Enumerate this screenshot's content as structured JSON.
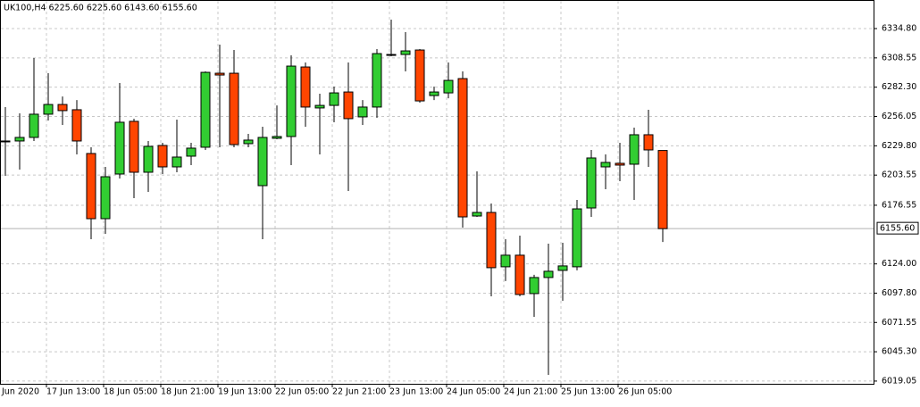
{
  "chart_data": {
    "type": "candlestick",
    "title": "UK100,H4  6225.60 6225.60 6143.60 6155.60",
    "x_start_label": "Jun 2020",
    "categories": [
      null,
      null,
      null,
      "17 Jun 13:00",
      null,
      null,
      null,
      "18 Jun 05:00",
      null,
      null,
      null,
      "18 Jun 21:00",
      null,
      null,
      null,
      "19 Jun 13:00",
      null,
      null,
      null,
      "22 Jun 05:00",
      null,
      null,
      null,
      "22 Jun 21:00",
      null,
      null,
      null,
      "23 Jun 13:00",
      null,
      null,
      null,
      "24 Jun 05:00",
      null,
      null,
      null,
      "24 Jun 21:00",
      null,
      null,
      null,
      "25 Jun 13:00",
      null,
      null,
      null,
      "26 Jun 05:00",
      null,
      null,
      null
    ],
    "open": [
      6233.3,
      6234.1,
      6237.3,
      6258.1,
      6266.8,
      6262.1,
      6222.9,
      6164.5,
      6204.5,
      6251.7,
      6206.1,
      6230.1,
      6210.9,
      6220.5,
      6228.5,
      6294.8,
      6294.8,
      6231.7,
      6194.1,
      6236.5,
      6238.1,
      6300.4,
      6263.7,
      6266.0,
      6278.0,
      6255.7,
      6264.5,
      6311.6,
      6311.6,
      6315.6,
      6274.8,
      6277.2,
      6290.0,
      6166.9,
      6170.1,
      6121.4,
      6131.8,
      6097.4,
      6111.8,
      6118.2,
      6121.4,
      6174.1,
      6210.9,
      6214.1,
      6213.3,
      6239.7,
      6225.6
    ],
    "high": [
      6264.5,
      6258.9,
      6308.4,
      6294.8,
      6274.0,
      6270.8,
      6228.5,
      6210.9,
      6286.0,
      6254.1,
      6234.1,
      6232.5,
      6253.3,
      6232.5,
      6296.4,
      6320.4,
      6315.6,
      6240.5,
      6246.9,
      6266.0,
      6310.8,
      6304.4,
      6276.4,
      6282.8,
      6304.4,
      6270.8,
      6316.4,
      6342.8,
      6331.6,
      6316.4,
      6282.8,
      6304.4,
      6296.4,
      6206.9,
      6178.1,
      6146.1,
      6149.3,
      6114.2,
      6142.1,
      6142.9,
      6181.3,
      6226.1,
      6222.1,
      6232.5,
      6246.1,
      6262.1,
      6225.6
    ],
    "low": [
      6202.9,
      6208.5,
      6234.1,
      6252.5,
      6248.5,
      6222.1,
      6146.1,
      6150.9,
      6200.5,
      6182.9,
      6188.5,
      6204.5,
      6206.1,
      6212.5,
      6226.1,
      6228.5,
      6228.5,
      6228.5,
      6146.1,
      6235.7,
      6212.5,
      6246.9,
      6222.1,
      6250.9,
      6189.3,
      6248.5,
      6254.9,
      6310.0,
      6296.4,
      6268.5,
      6270.8,
      6272.4,
      6156.5,
      6166.1,
      6095.0,
      6108.6,
      6095.0,
      6076.6,
      6024.6,
      6091.0,
      6118.2,
      6166.1,
      6190.9,
      6198.1,
      6181.3,
      6210.9,
      6143.6
    ],
    "close": [
      6234.1,
      6237.3,
      6258.1,
      6266.8,
      6261.3,
      6234.1,
      6164.5,
      6202.1,
      6250.9,
      6206.1,
      6229.3,
      6210.9,
      6219.7,
      6227.7,
      6295.6,
      6293.2,
      6230.9,
      6234.9,
      6237.3,
      6238.1,
      6301.2,
      6264.5,
      6266.0,
      6277.2,
      6254.1,
      6264.5,
      6312.4,
      6310.8,
      6314.8,
      6270.0,
      6278.0,
      6288.4,
      6166.1,
      6170.1,
      6120.6,
      6131.8,
      6096.6,
      6111.8,
      6117.4,
      6122.2,
      6173.3,
      6218.9,
      6214.9,
      6212.5,
      6239.7,
      6226.1,
      6155.6
    ],
    "up_color": "#32cd32",
    "down_color": "#ff4500",
    "last_price": {
      "value": 6155.6,
      "label": "6155.60"
    },
    "ylim": [
      6016.6,
      6360.4
    ],
    "yticks": [
      {
        "value": 6334.8,
        "label": "6334.80"
      },
      {
        "value": 6308.55,
        "label": "6308.55"
      },
      {
        "value": 6282.3,
        "label": "6282.30"
      },
      {
        "value": 6256.05,
        "label": "6256.05"
      },
      {
        "value": 6229.8,
        "label": "6229.80"
      },
      {
        "value": 6203.55,
        "label": "6203.55"
      },
      {
        "value": 6176.55,
        "label": "6176.55"
      },
      {
        "value": 6124.0,
        "label": "6124.00"
      },
      {
        "value": 6097.8,
        "label": "6097.80"
      },
      {
        "value": 6071.55,
        "label": "6071.55"
      },
      {
        "value": 6045.3,
        "label": "6045.30"
      },
      {
        "value": 6019.05,
        "label": "6019.05"
      }
    ],
    "grid": true
  }
}
